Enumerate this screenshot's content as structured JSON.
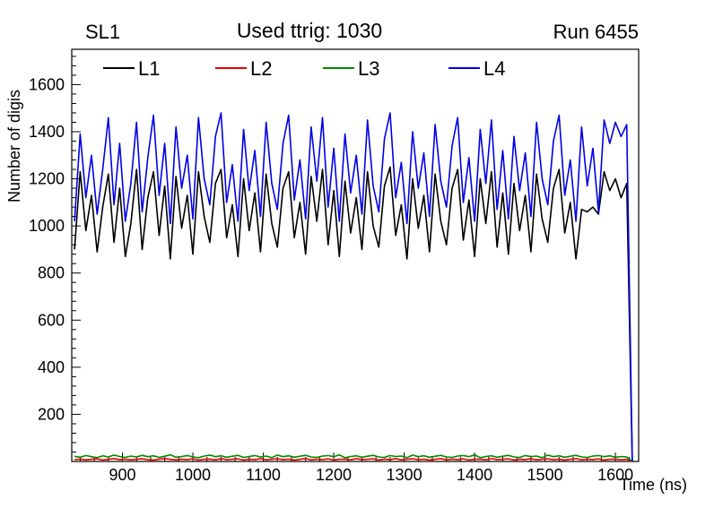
{
  "header": {
    "left": "SL1",
    "center": "Used ttrig: 1030",
    "right": "Run 6455"
  },
  "axes": {
    "x_ticks": [
      900,
      1000,
      1100,
      1200,
      1300,
      1400,
      1500,
      1600
    ],
    "y_ticks": [
      200,
      400,
      600,
      800,
      1000,
      1200,
      1400,
      1600
    ],
    "x_minor_step": 20,
    "y_minor_step": 40
  },
  "colors": {
    "frame": "#000000",
    "text": "#000000"
  },
  "chart_data": {
    "type": "line",
    "title": "Used ttrig: 1030",
    "xlabel": "Time (ns)",
    "ylabel": "Number of digis",
    "xlim": [
      828,
      1633
    ],
    "ylim": [
      0,
      1750
    ],
    "grid": false,
    "legend_position": "top-inside-horizontal",
    "x": [
      832,
      840,
      848,
      856,
      864,
      872,
      880,
      888,
      896,
      904,
      912,
      920,
      928,
      936,
      944,
      952,
      960,
      968,
      976,
      984,
      992,
      1000,
      1008,
      1016,
      1024,
      1032,
      1040,
      1048,
      1056,
      1064,
      1072,
      1080,
      1088,
      1096,
      1104,
      1112,
      1120,
      1128,
      1136,
      1144,
      1152,
      1160,
      1168,
      1176,
      1184,
      1192,
      1200,
      1208,
      1216,
      1224,
      1232,
      1240,
      1248,
      1256,
      1264,
      1272,
      1280,
      1288,
      1296,
      1304,
      1312,
      1320,
      1328,
      1336,
      1344,
      1352,
      1360,
      1368,
      1376,
      1384,
      1392,
      1400,
      1408,
      1416,
      1424,
      1432,
      1440,
      1448,
      1456,
      1464,
      1472,
      1480,
      1488,
      1496,
      1504,
      1512,
      1520,
      1528,
      1536,
      1544,
      1552,
      1560,
      1568,
      1576,
      1584,
      1592,
      1600,
      1608,
      1616,
      1624
    ],
    "series": [
      {
        "name": "L1",
        "color": "#000000",
        "values": [
          900,
          1230,
          980,
          1130,
          890,
          1080,
          1220,
          930,
          1160,
          870,
          1010,
          1240,
          900,
          1120,
          1230,
          960,
          1170,
          860,
          1210,
          990,
          1130,
          880,
          1230,
          1040,
          930,
          1180,
          1240,
          950,
          1090,
          870,
          1200,
          980,
          1140,
          890,
          1220,
          1010,
          910,
          1160,
          1230,
          950,
          1100,
          880,
          1210,
          1020,
          1240,
          920,
          1150,
          870,
          1190,
          970,
          1120,
          900,
          1230,
          1000,
          910,
          1170,
          1250,
          960,
          1090,
          860,
          1200,
          990,
          1130,
          890,
          1220,
          1020,
          920,
          1160,
          1240,
          940,
          1110,
          870,
          1200,
          1010,
          1230,
          910,
          1140,
          880,
          1180,
          980,
          1130,
          890,
          1220,
          1030,
          930,
          1160,
          1240,
          970,
          1100,
          860,
          1070,
          1060,
          1080,
          1050,
          1230,
          1150,
          1200,
          1120,
          1180,
          0
        ]
      },
      {
        "name": "L2",
        "color": "#e60000",
        "values": [
          8,
          10,
          7,
          9,
          11,
          6,
          9,
          12,
          8,
          10,
          7,
          9,
          11,
          8,
          6,
          10,
          12,
          9,
          7,
          10,
          8,
          11,
          6,
          9,
          10,
          7,
          12,
          8,
          9,
          11,
          6,
          10,
          8,
          12,
          7,
          9,
          11,
          8,
          10,
          6,
          9,
          12,
          7,
          10,
          8,
          11,
          6,
          9,
          10,
          7,
          12,
          8,
          9,
          11,
          6,
          10,
          8,
          12,
          7,
          9,
          11,
          8,
          10,
          6,
          9,
          12,
          7,
          10,
          8,
          11,
          6,
          9,
          10,
          7,
          12,
          8,
          9,
          11,
          6,
          10,
          8,
          12,
          7,
          9,
          11,
          8,
          10,
          6,
          9,
          12,
          7,
          10,
          8,
          11,
          6,
          9,
          10,
          7,
          9,
          0
        ]
      },
      {
        "name": "L3",
        "color": "#008a00",
        "values": [
          22,
          18,
          25,
          20,
          16,
          24,
          19,
          27,
          21,
          17,
          23,
          19,
          26,
          20,
          24,
          17,
          22,
          28,
          18,
          21,
          25,
          19,
          16,
          23,
          27,
          20,
          24,
          18,
          22,
          26,
          17,
          21,
          25,
          19,
          23,
          16,
          27,
          20,
          24,
          18,
          22,
          26,
          19,
          17,
          23,
          25,
          20,
          28,
          16,
          21,
          24,
          18,
          22,
          26,
          19,
          17,
          25,
          21,
          23,
          16,
          27,
          20,
          24,
          18,
          22,
          26,
          19,
          17,
          23,
          25,
          20,
          28,
          16,
          21,
          24,
          18,
          22,
          26,
          19,
          17,
          25,
          21,
          23,
          16,
          27,
          20,
          24,
          18,
          22,
          26,
          19,
          17,
          23,
          25,
          20,
          24,
          18,
          21,
          19,
          0
        ]
      },
      {
        "name": "L4",
        "color": "#0000e6",
        "values": [
          1020,
          1390,
          1120,
          1300,
          1050,
          1240,
          1460,
          1090,
          1350,
          1020,
          1180,
          1440,
          1060,
          1290,
          1470,
          1130,
          1350,
          1010,
          1420,
          1160,
          1300,
          1030,
          1460,
          1200,
          1090,
          1380,
          1480,
          1100,
          1260,
          1020,
          1410,
          1150,
          1320,
          1040,
          1440,
          1180,
          1070,
          1350,
          1470,
          1110,
          1280,
          1030,
          1420,
          1190,
          1460,
          1080,
          1330,
          1020,
          1390,
          1140,
          1300,
          1050,
          1450,
          1170,
          1060,
          1370,
          1480,
          1120,
          1270,
          1010,
          1400,
          1160,
          1310,
          1040,
          1430,
          1190,
          1080,
          1340,
          1460,
          1100,
          1290,
          1020,
          1410,
          1180,
          1450,
          1070,
          1320,
          1030,
          1380,
          1150,
          1310,
          1040,
          1440,
          1200,
          1090,
          1360,
          1470,
          1130,
          1280,
          1020,
          1420,
          1170,
          1330,
          1060,
          1450,
          1350,
          1440,
          1380,
          1430,
          0
        ]
      }
    ]
  }
}
